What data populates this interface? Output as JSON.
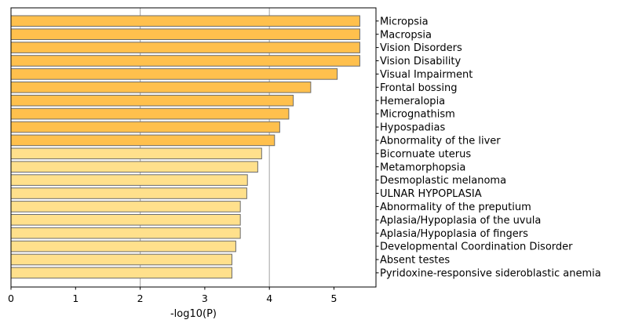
{
  "chart_data": {
    "type": "bar",
    "orientation": "horizontal",
    "xlabel": "-log10(P)",
    "ylabel": "",
    "title": "",
    "xlim": [
      0,
      5.65
    ],
    "xticks": [
      "0",
      "1",
      "2",
      "3",
      "4",
      "5"
    ],
    "grid": "vertical lines at x = 2 and x = 4",
    "category_label_position": "right",
    "colors": {
      "dark": "#FFC04D",
      "light": "#FFE08C",
      "edge": "#6b6b6b",
      "grid": "#b0b0b0"
    },
    "categories": [
      "Micropsia",
      "Macropsia",
      "Vision Disorders",
      "Vision Disability",
      "Visual Impairment",
      "Frontal bossing",
      "Hemeralopia",
      "Micrognathism",
      "Hypospadias",
      "Abnormality of the liver",
      "Bicornuate uterus",
      "Metamorphopsia",
      "Desmoplastic melanoma",
      "ULNAR HYPOPLASIA",
      "Abnormality of the preputium",
      "Aplasia/Hypoplasia of the uvula",
      "Aplasia/Hypoplasia of fingers",
      "Developmental Coordination Disorder",
      "Absent testes",
      "Pyridoxine-responsive sideroblastic anemia"
    ],
    "values": [
      5.4,
      5.4,
      5.4,
      5.4,
      5.05,
      4.64,
      4.37,
      4.3,
      4.16,
      4.08,
      3.88,
      3.82,
      3.66,
      3.65,
      3.55,
      3.55,
      3.55,
      3.48,
      3.42,
      3.42
    ],
    "shade": [
      "dark",
      "dark",
      "dark",
      "dark",
      "dark",
      "dark",
      "dark",
      "dark",
      "dark",
      "dark",
      "light",
      "light",
      "light",
      "light",
      "light",
      "light",
      "light",
      "light",
      "light",
      "light"
    ]
  }
}
